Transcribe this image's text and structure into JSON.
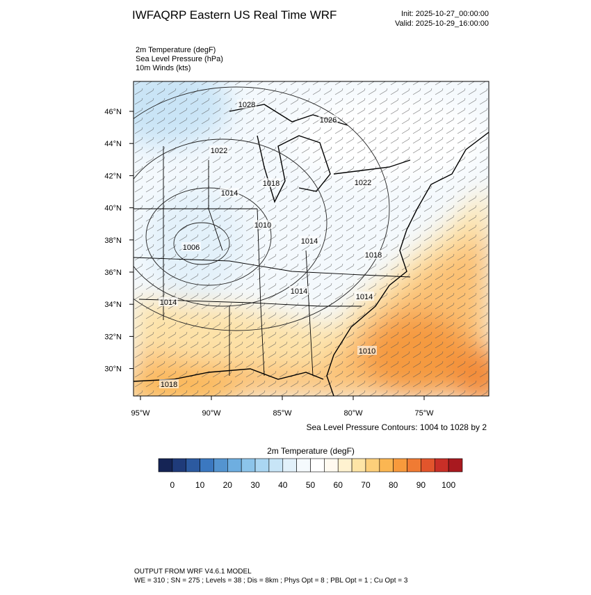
{
  "header": {
    "title": "IWFAQRP Eastern US Real Time WRF",
    "init": "Init: 2025-10-27_00:00:00",
    "valid": "Valid: 2025-10-29_16:00:00"
  },
  "fields": [
    "2m Temperature   (degF)",
    "Sea Level Pressure   (hPa)",
    "10m Winds   (kts)"
  ],
  "map": {
    "lat_ticks": [
      {
        "value": 46,
        "label": "46°N"
      },
      {
        "value": 44,
        "label": "44°N"
      },
      {
        "value": 42,
        "label": "42°N"
      },
      {
        "value": 40,
        "label": "40°N"
      },
      {
        "value": 38,
        "label": "38°N"
      },
      {
        "value": 36,
        "label": "36°N"
      },
      {
        "value": 34,
        "label": "34°N"
      },
      {
        "value": 32,
        "label": "32°N"
      },
      {
        "value": 30,
        "label": "30°N"
      }
    ],
    "lon_ticks": [
      {
        "value": -95,
        "label": "95°W"
      },
      {
        "value": -90,
        "label": "90°W"
      },
      {
        "value": -85,
        "label": "85°W"
      },
      {
        "value": -80,
        "label": "80°W"
      },
      {
        "value": -75,
        "label": "75°W"
      }
    ],
    "contour_labels": [
      "1028",
      "1026",
      "1022",
      "1018",
      "1022",
      "1014",
      "1010",
      "1014",
      "1006",
      "1018",
      "1014",
      "1014",
      "1014",
      "1010",
      "1018"
    ],
    "contour_note": "Sea Level Pressure Contours: 1004 to 1028 by 2"
  },
  "colorbar": {
    "title": "2m Temperature  (degF)",
    "labels": [
      "0",
      "10",
      "20",
      "30",
      "40",
      "50",
      "60",
      "70",
      "80",
      "90",
      "100"
    ],
    "colors": [
      "#152455",
      "#1f3b7a",
      "#2c5aa0",
      "#3b78c0",
      "#5494d0",
      "#6eaee0",
      "#8cc4ea",
      "#aad6f2",
      "#c8e5f7",
      "#e2f1fa",
      "#f5fafd",
      "#ffffff",
      "#fffaf0",
      "#fff2d0",
      "#fee5a6",
      "#fdcf7a",
      "#fbb652",
      "#f89a3c",
      "#f07b33",
      "#e2552c",
      "#c92f27",
      "#a8191f"
    ]
  },
  "footer": {
    "line1": "OUTPUT FROM WRF V4.6.1 MODEL",
    "line2": "WE = 310 ; SN = 275 ; Levels = 38 ; Dis = 8km ; Phys Opt = 8 ; PBL Opt = 1 ; Cu Opt = 3"
  }
}
